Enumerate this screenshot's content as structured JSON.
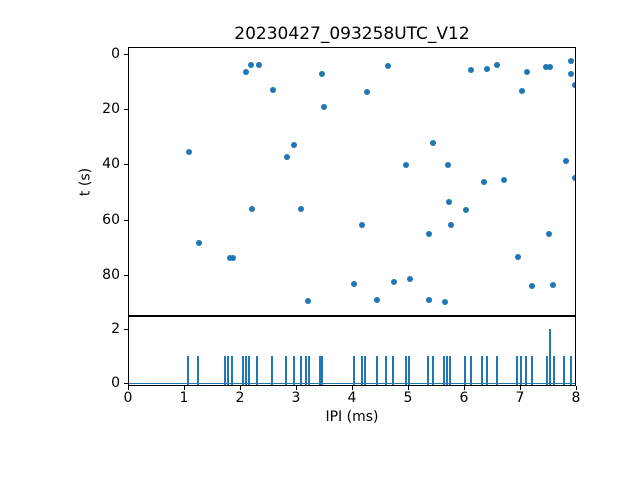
{
  "figure": {
    "title": "20230427_093258UTC_V12",
    "background": "#ffffff"
  },
  "colors": {
    "marker": "#1f77b4",
    "spike": "#1f77b4",
    "spine": "#000000",
    "text": "#000000"
  },
  "chart_data": [
    {
      "type": "scatter",
      "title": "20230427_093258UTC_V12",
      "xlabel": "",
      "ylabel": "t (s)",
      "xlim": [
        0,
        8
      ],
      "ylim": [
        -2.34,
        94.4
      ],
      "y_inverted": true,
      "grid": false,
      "legend": "none",
      "xticks": [
        0,
        1,
        2,
        3,
        4,
        5,
        6,
        7,
        8
      ],
      "xtick_labels_hidden": true,
      "yticks": [
        0,
        20,
        40,
        60,
        80
      ],
      "ytick_labels": [
        "0",
        "20",
        "40",
        "60",
        "80"
      ],
      "marker_color": "#1f77b4",
      "points_xy": [
        [
          1.08,
          35.2
        ],
        [
          1.26,
          68.2
        ],
        [
          1.81,
          73.6
        ],
        [
          1.87,
          73.6
        ],
        [
          2.1,
          6.5
        ],
        [
          2.18,
          3.9
        ],
        [
          2.2,
          56.1
        ],
        [
          2.33,
          3.9
        ],
        [
          2.58,
          13.0
        ],
        [
          2.84,
          37.2
        ],
        [
          2.96,
          32.8
        ],
        [
          3.09,
          56.1
        ],
        [
          3.21,
          89.3
        ],
        [
          3.47,
          7.1
        ],
        [
          3.49,
          19.0
        ],
        [
          4.04,
          83.1
        ],
        [
          4.18,
          61.9
        ],
        [
          4.27,
          13.6
        ],
        [
          4.45,
          89.0
        ],
        [
          4.64,
          4.1
        ],
        [
          4.76,
          82.6
        ],
        [
          4.97,
          40.0
        ],
        [
          5.04,
          81.3
        ],
        [
          5.38,
          88.8
        ],
        [
          5.39,
          65.2
        ],
        [
          5.46,
          32.2
        ],
        [
          5.67,
          89.6
        ],
        [
          5.72,
          40.0
        ],
        [
          5.74,
          53.6
        ],
        [
          5.78,
          61.9
        ],
        [
          6.04,
          56.2
        ],
        [
          6.14,
          5.5
        ],
        [
          6.37,
          46.3
        ],
        [
          6.43,
          5.2
        ],
        [
          6.6,
          3.7
        ],
        [
          6.73,
          45.5
        ],
        [
          6.98,
          73.4
        ],
        [
          7.05,
          13.4
        ],
        [
          7.14,
          6.3
        ],
        [
          7.23,
          83.9
        ],
        [
          7.48,
          4.4
        ],
        [
          7.54,
          65.0
        ],
        [
          7.55,
          4.4
        ],
        [
          7.6,
          83.6
        ],
        [
          7.84,
          38.7
        ],
        [
          7.93,
          2.5
        ],
        [
          7.93,
          7.1
        ],
        [
          8.0,
          10.9
        ],
        [
          8.0,
          44.8
        ]
      ]
    },
    {
      "type": "line",
      "subtype": "spike-train",
      "xlabel": "IPI (ms)",
      "ylabel": "",
      "xlim": [
        0,
        8
      ],
      "ylim": [
        -0.05,
        2.44
      ],
      "grid": false,
      "legend": "none",
      "xticks": [
        0,
        1,
        2,
        3,
        4,
        5,
        6,
        7,
        8
      ],
      "xtick_labels": [
        "0",
        "1",
        "2",
        "3",
        "4",
        "5",
        "6",
        "7",
        "8"
      ],
      "yticks": [
        0,
        2
      ],
      "ytick_labels": [
        "0",
        "2"
      ],
      "line_color": "#1f77b4",
      "baseline_value": 0,
      "spikes_x_height": [
        [
          1.05,
          1
        ],
        [
          1.23,
          1
        ],
        [
          1.72,
          1
        ],
        [
          1.77,
          1
        ],
        [
          1.85,
          1
        ],
        [
          2.05,
          1
        ],
        [
          2.1,
          1
        ],
        [
          2.16,
          1
        ],
        [
          2.29,
          1
        ],
        [
          2.57,
          1
        ],
        [
          2.81,
          1
        ],
        [
          2.96,
          1
        ],
        [
          3.08,
          1
        ],
        [
          3.18,
          1
        ],
        [
          3.22,
          1
        ],
        [
          3.43,
          1
        ],
        [
          3.47,
          1
        ],
        [
          4.04,
          1
        ],
        [
          4.18,
          1
        ],
        [
          4.24,
          1
        ],
        [
          4.45,
          1
        ],
        [
          4.61,
          1
        ],
        [
          4.73,
          1
        ],
        [
          4.96,
          1
        ],
        [
          5.03,
          1
        ],
        [
          5.36,
          1
        ],
        [
          5.46,
          1
        ],
        [
          5.65,
          1
        ],
        [
          5.7,
          1
        ],
        [
          5.75,
          1
        ],
        [
          6.03,
          1
        ],
        [
          6.13,
          1
        ],
        [
          6.33,
          1
        ],
        [
          6.42,
          1
        ],
        [
          6.6,
          1
        ],
        [
          6.96,
          1
        ],
        [
          7.04,
          1
        ],
        [
          7.13,
          1
        ],
        [
          7.22,
          1
        ],
        [
          7.49,
          1
        ],
        [
          7.56,
          2
        ],
        [
          7.62,
          1
        ],
        [
          7.81,
          1
        ],
        [
          7.92,
          1
        ]
      ]
    }
  ]
}
